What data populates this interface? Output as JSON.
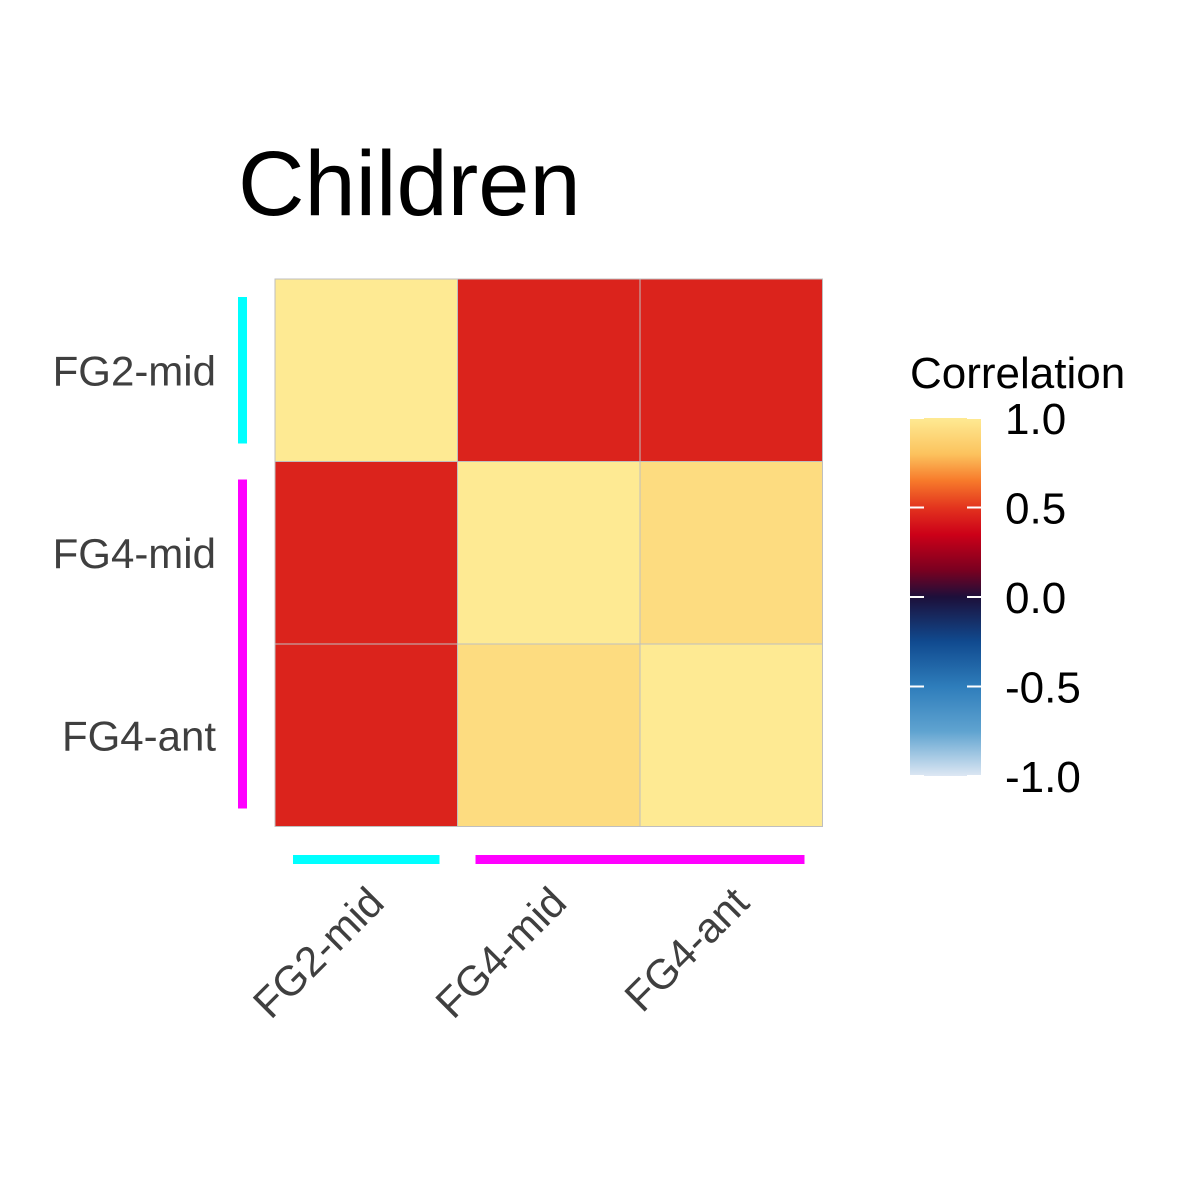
{
  "chart_data": {
    "type": "heatmap",
    "title": "Children",
    "rows": [
      "FG2-mid",
      "FG4-mid",
      "FG4-ant"
    ],
    "columns": [
      "FG2-mid",
      "FG4-mid",
      "FG4-ant"
    ],
    "values": [
      [
        1.0,
        0.45,
        0.45
      ],
      [
        0.45,
        1.0,
        0.93
      ],
      [
        0.45,
        0.93,
        1.0
      ]
    ],
    "groups": [
      {
        "members": [
          "FG2-mid"
        ],
        "color": "#00FFFF"
      },
      {
        "members": [
          "FG4-mid",
          "FG4-ant"
        ],
        "color": "#FF00FF"
      }
    ],
    "legend": {
      "title": "Correlation",
      "ticks": [
        "1.0",
        "0.5",
        "0.0",
        "-0.5",
        "-1.0"
      ],
      "tick_values": [
        1.0,
        0.5,
        0.0,
        -0.5,
        -1.0
      ],
      "range": [
        -1.0,
        1.0
      ],
      "position": "right"
    },
    "colorscale": [
      {
        "v": -1.0,
        "c": "#DDE7F3"
      },
      {
        "v": -0.75,
        "c": "#5FA3D0"
      },
      {
        "v": -0.5,
        "c": "#2E7DBB"
      },
      {
        "v": -0.25,
        "c": "#104A8F"
      },
      {
        "v": 0.0,
        "c": "#1C0F3A"
      },
      {
        "v": 0.15,
        "c": "#7A0020"
      },
      {
        "v": 0.35,
        "c": "#CC0018"
      },
      {
        "v": 0.5,
        "c": "#E3341E"
      },
      {
        "v": 0.65,
        "c": "#F77A2B"
      },
      {
        "v": 0.8,
        "c": "#FCC35E"
      },
      {
        "v": 1.0,
        "c": "#FEEA93"
      }
    ],
    "grid_color": "#BFBFBF"
  }
}
